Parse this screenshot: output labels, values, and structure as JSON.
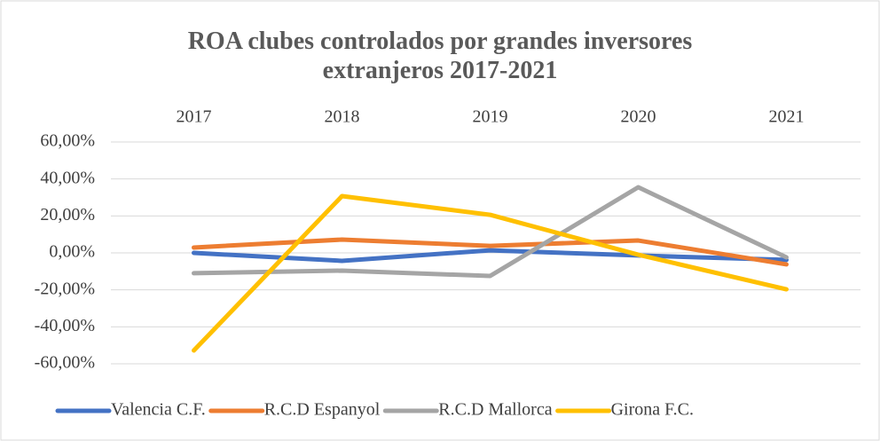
{
  "chart_data": {
    "type": "line",
    "title": "ROA clubes controlados por grandes inversores extranjeros 2017-2021",
    "categories": [
      "2017",
      "2018",
      "2019",
      "2020",
      "2021"
    ],
    "series": [
      {
        "name": "Valencia C.F.",
        "color": "#4472c4",
        "values": [
          0.0,
          -4.3,
          1.4,
          -1.4,
          -3.8
        ]
      },
      {
        "name": "R.C.D Espanyol",
        "color": "#ed7d31",
        "values": [
          2.9,
          7.2,
          3.8,
          6.7,
          -6.2
        ]
      },
      {
        "name": "R.C.D Mallorca",
        "color": "#a5a5a5",
        "values": [
          -11.0,
          -9.6,
          -12.5,
          35.5,
          -2.4
        ]
      },
      {
        "name": "Girona F.C.",
        "color": "#ffc000",
        "values": [
          -52.8,
          30.7,
          20.6,
          -1.0,
          -19.7
        ]
      }
    ],
    "ylim": [
      -60,
      60
    ],
    "yticks": [
      {
        "value": -60,
        "label": "-60,00%"
      },
      {
        "value": -40,
        "label": "-40,00%"
      },
      {
        "value": -20,
        "label": "-20,00%"
      },
      {
        "value": 0,
        "label": "0,00%"
      },
      {
        "value": 20,
        "label": "20,00%"
      },
      {
        "value": 40,
        "label": "40,00%"
      },
      {
        "value": 60,
        "label": "60,00%"
      }
    ],
    "grid": true,
    "legend": "bottom"
  }
}
